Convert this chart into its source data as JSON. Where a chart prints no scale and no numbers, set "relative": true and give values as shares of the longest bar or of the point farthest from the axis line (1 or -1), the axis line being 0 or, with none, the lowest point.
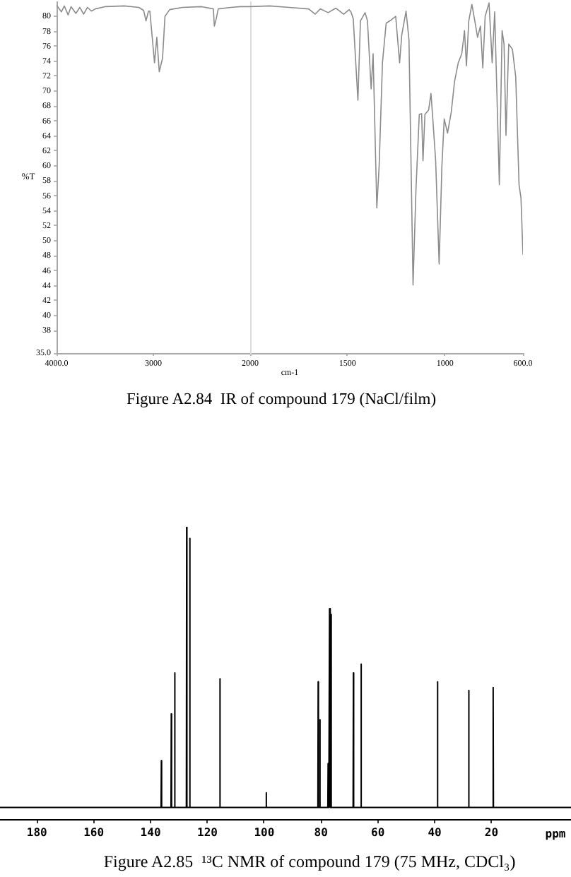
{
  "chart_data": [
    {
      "type": "line",
      "title": "Figure A2.84  IR of compound 179 (NaCl/film)",
      "ylabel": "%T",
      "color": "#8c8c8c",
      "x": [
        4000,
        3950,
        3920,
        3880,
        3850,
        3800,
        3760,
        3720,
        3680,
        3640,
        3600,
        3500,
        3300,
        3150,
        3100,
        3076,
        3050,
        3036,
        2988,
        2964,
        2939,
        2905,
        2880,
        2832,
        2700,
        2500,
        2380,
        2370,
        2350,
        2330,
        2200,
        2100,
        2000
      ],
      "values": [
        81.5,
        80.6,
        81.4,
        80.2,
        81.3,
        80.4,
        81.2,
        80.3,
        81.2,
        80.7,
        81.0,
        81.3,
        81.4,
        81.2,
        80.8,
        79.4,
        80.7,
        80.7,
        73.8,
        77.2,
        72.6,
        74.4,
        80.0,
        80.9,
        81.2,
        81.3,
        81.0,
        78.7,
        79.7,
        81.0,
        81.2,
        81.3,
        81.3
      ],
      "xlim": [
        4000,
        2000
      ],
      "xticks": [
        {
          "value": 4000,
          "label": "4000.0"
        },
        3000,
        2000
      ],
      "ylim": [
        35,
        82
      ],
      "yticks": [
        {
          "value": 35,
          "label": "35.0"
        },
        38,
        40,
        42,
        44,
        46,
        48,
        50,
        52,
        54,
        56,
        58,
        60,
        62,
        64,
        66,
        68,
        70,
        72,
        74,
        76,
        78,
        80
      ]
    },
    {
      "type": "line",
      "xlabel": "cm-1",
      "color": "#8c8c8c",
      "tick_labels": "x",
      "x": [
        2000,
        1900,
        1800,
        1700,
        1666,
        1640,
        1600,
        1560,
        1520,
        1492,
        1483,
        1471,
        1447,
        1434,
        1410,
        1398,
        1379,
        1369,
        1350,
        1338,
        1321,
        1302,
        1277,
        1253,
        1233,
        1222,
        1200,
        1185,
        1164,
        1149,
        1132,
        1120,
        1113,
        1103,
        1084,
        1072,
        1065,
        1048,
        1030,
        1016,
        1004,
        987,
        968,
        951,
        932,
        914,
        900,
        890,
        878,
        862,
        847,
        833,
        818,
        806,
        794,
        774,
        758,
        745,
        721,
        707,
        697,
        687,
        673,
        654,
        637,
        620,
        610,
        600
      ],
      "values": [
        81.3,
        81.4,
        81.2,
        81.0,
        80.3,
        81.0,
        80.5,
        81.1,
        80.3,
        80.9,
        80.6,
        79.7,
        68.8,
        79.4,
        80.5,
        79.4,
        70.3,
        75.0,
        54.4,
        60.0,
        73.8,
        79.1,
        79.5,
        80.0,
        73.8,
        77.5,
        80.7,
        76.9,
        44.1,
        56.9,
        66.9,
        67.0,
        60.7,
        66.9,
        67.5,
        69.7,
        67.2,
        60.7,
        46.9,
        60.0,
        66.3,
        64.4,
        67.2,
        71.3,
        73.8,
        75.0,
        78.1,
        73.4,
        79.4,
        81.6,
        79.4,
        77.2,
        78.7,
        73.1,
        80.0,
        81.8,
        73.8,
        80.6,
        57.5,
        78.1,
        76.3,
        64.1,
        76.3,
        75.6,
        71.9,
        57.5,
        55.7,
        48.2
      ],
      "xlim": [
        2000,
        600
      ],
      "xticks": [
        1500,
        1000,
        {
          "value": 600,
          "label": "600.0"
        }
      ],
      "ylim": [
        35,
        82
      ]
    },
    {
      "type": "line",
      "title": "Figure A2.85  ¹³C NMR of compound 179 (75 MHz, CDCl₃)",
      "xlabel": "ppm",
      "relative": true,
      "color": "#000000",
      "x": [
        193,
        136.3,
        136.2,
        136.1,
        132.8,
        132.7,
        132.6,
        131.6,
        131.5,
        131.4,
        127.4,
        127.3,
        127.2,
        126.3,
        126.2,
        126.1,
        115.7,
        115.6,
        115.5,
        99.4,
        99.3,
        99.2,
        81.1,
        81.0,
        80.9,
        80.5,
        80.4,
        80.3,
        77.6,
        77.5,
        77.4,
        77.1,
        77.0,
        76.9,
        76.6,
        76.5,
        76.4,
        68.7,
        68.6,
        68.5,
        66.0,
        65.9,
        65.8,
        39.1,
        39.0,
        38.9,
        28.1,
        28.0,
        27.9,
        19.5,
        19.4,
        19.3,
        -8
      ],
      "values": [
        0.04,
        0.04,
        0.2,
        0.04,
        0.04,
        0.36,
        0.04,
        0.04,
        0.5,
        0.04,
        0.04,
        1,
        0.04,
        0.04,
        0.96,
        0.04,
        0.04,
        0.48,
        0.04,
        0.04,
        0.09,
        0.04,
        0.04,
        0.47,
        0.04,
        0.04,
        0.34,
        0.04,
        0.04,
        0.19,
        0.04,
        0.04,
        0.72,
        0.04,
        0.04,
        0.7,
        0.04,
        0.04,
        0.5,
        0.04,
        0.04,
        0.53,
        0.04,
        0.04,
        0.47,
        0.04,
        0.04,
        0.44,
        0.04,
        0.04,
        0.45,
        0.04,
        0.04
      ],
      "xlim": [
        193,
        -8
      ],
      "xticks": [
        180,
        160,
        140,
        120,
        100,
        80,
        60,
        40,
        20
      ]
    }
  ]
}
